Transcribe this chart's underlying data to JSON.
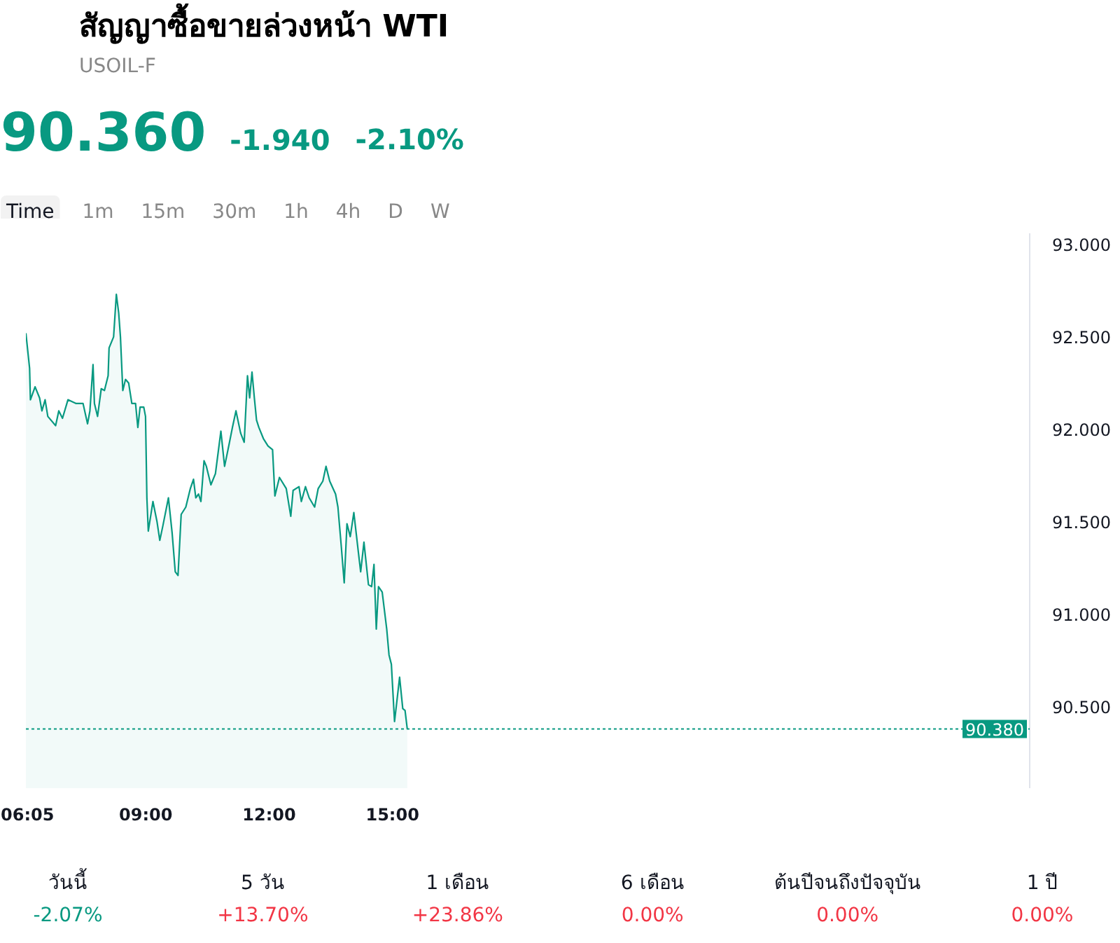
{
  "chart_data": [
    {
      "type": "area",
      "title": "สัญญาซื้อขายล่วงหน้า WTI",
      "subtitle": "USOIL-F",
      "annotations": [
        "90.360",
        "-1.940",
        "-2.10%",
        "Time",
        "1m",
        "15m",
        "30m",
        "1h",
        "4h",
        "D",
        "W"
      ],
      "x": [
        6.083,
        6.173,
        6.193,
        6.306,
        6.416,
        6.473,
        6.55,
        6.616,
        6.806,
        6.883,
        6.973,
        7.106,
        7.306,
        7.473,
        7.583,
        7.64,
        7.716,
        7.75,
        7.826,
        7.916,
        7.993,
        8.083,
        8.106,
        8.216,
        8.283,
        8.34,
        8.383,
        8.44,
        8.506,
        8.583,
        8.66,
        8.75,
        8.806,
        8.86,
        8.95,
        8.993,
        9.026,
        9.06,
        9.173,
        9.273,
        9.34,
        9.416,
        9.55,
        9.64,
        9.716,
        9.783,
        9.86,
        9.973,
        10.083,
        10.16,
        10.216,
        10.283,
        10.34,
        10.416,
        10.473,
        10.583,
        10.693,
        10.826,
        10.916,
        11.026,
        11.106,
        11.193,
        11.306,
        11.393,
        11.473,
        11.526,
        11.583,
        11.64,
        11.693,
        11.75,
        11.86,
        11.973,
        12.083,
        12.14,
        12.25,
        12.416,
        12.526,
        12.583,
        12.726,
        12.783,
        12.883,
        12.973,
        13.106,
        13.193,
        13.306,
        13.383,
        13.473,
        13.616,
        13.673,
        13.75,
        13.826,
        13.893,
        13.973,
        14.06,
        14.173,
        14.226,
        14.306,
        14.416,
        14.493,
        14.55,
        14.606,
        14.66,
        14.75,
        14.86,
        14.916,
        14.973,
        15.05,
        15.173,
        15.25,
        15.306,
        15.36
      ],
      "series": [
        {
          "color": "#089981",
          "values": [
            92.52,
            92.33,
            92.16,
            92.23,
            92.17,
            92.1,
            92.16,
            92.07,
            92.02,
            92.1,
            92.06,
            92.16,
            92.14,
            92.14,
            92.03,
            92.1,
            92.35,
            92.14,
            92.07,
            92.22,
            92.21,
            92.29,
            92.44,
            92.5,
            92.73,
            92.63,
            92.5,
            92.21,
            92.27,
            92.25,
            92.14,
            92.14,
            92.01,
            92.12,
            92.12,
            92.07,
            91.63,
            91.45,
            91.61,
            91.5,
            91.4,
            91.48,
            91.63,
            91.44,
            91.23,
            91.21,
            91.54,
            91.58,
            91.68,
            91.73,
            91.63,
            91.65,
            91.61,
            91.83,
            91.8,
            91.7,
            91.76,
            91.99,
            91.8,
            91.92,
            92.01,
            92.1,
            91.98,
            91.93,
            92.29,
            92.17,
            92.31,
            92.17,
            92.05,
            92.01,
            91.95,
            91.91,
            91.89,
            91.64,
            91.74,
            91.68,
            91.53,
            91.67,
            91.69,
            91.61,
            91.69,
            91.63,
            91.58,
            91.68,
            91.72,
            91.8,
            91.72,
            91.65,
            91.58,
            91.38,
            91.17,
            91.49,
            91.42,
            91.55,
            91.33,
            91.23,
            91.39,
            91.16,
            91.15,
            91.27,
            90.92,
            91.15,
            91.12,
            90.92,
            90.78,
            90.73,
            90.42,
            90.66,
            90.49,
            90.48,
            90.38
          ]
        }
      ],
      "xlim": [
        6.083,
        30.5
      ],
      "xticks": [
        {
          "value": 6.083,
          "label": "06:05"
        },
        {
          "value": 9,
          "label": "09:00"
        },
        {
          "value": 12,
          "label": "12:00"
        },
        {
          "value": 15,
          "label": "15:00"
        }
      ],
      "ylim": [
        90.06,
        93.06
      ],
      "yticks": [
        {
          "value": 90.5,
          "label": "90.500"
        },
        {
          "value": 91,
          "label": "91.000"
        },
        {
          "value": 91.5,
          "label": "91.500"
        },
        {
          "value": 92,
          "label": "92.000"
        },
        {
          "value": 92.5,
          "label": "92.500"
        },
        {
          "value": 93,
          "label": "93.000"
        }
      ],
      "ref_lines": [
        {
          "axis": "y",
          "value": 90.38,
          "label": "90.380",
          "color": "#089981",
          "line_style": "dotted"
        }
      ]
    },
    {
      "type": "other",
      "categories": [
        "วันนี้",
        "5 วัน",
        "1 เดือน",
        "6 เดือน",
        "ต้นปีจนถึงปัจจุบัน",
        "1 ปี"
      ],
      "values": [
        -2.07,
        13.7,
        23.86,
        0,
        0,
        0
      ],
      "value_labels": [
        "-2.07%",
        "+13.70%",
        "+23.86%",
        "0.00%",
        "0.00%",
        "0.00%"
      ]
    }
  ]
}
